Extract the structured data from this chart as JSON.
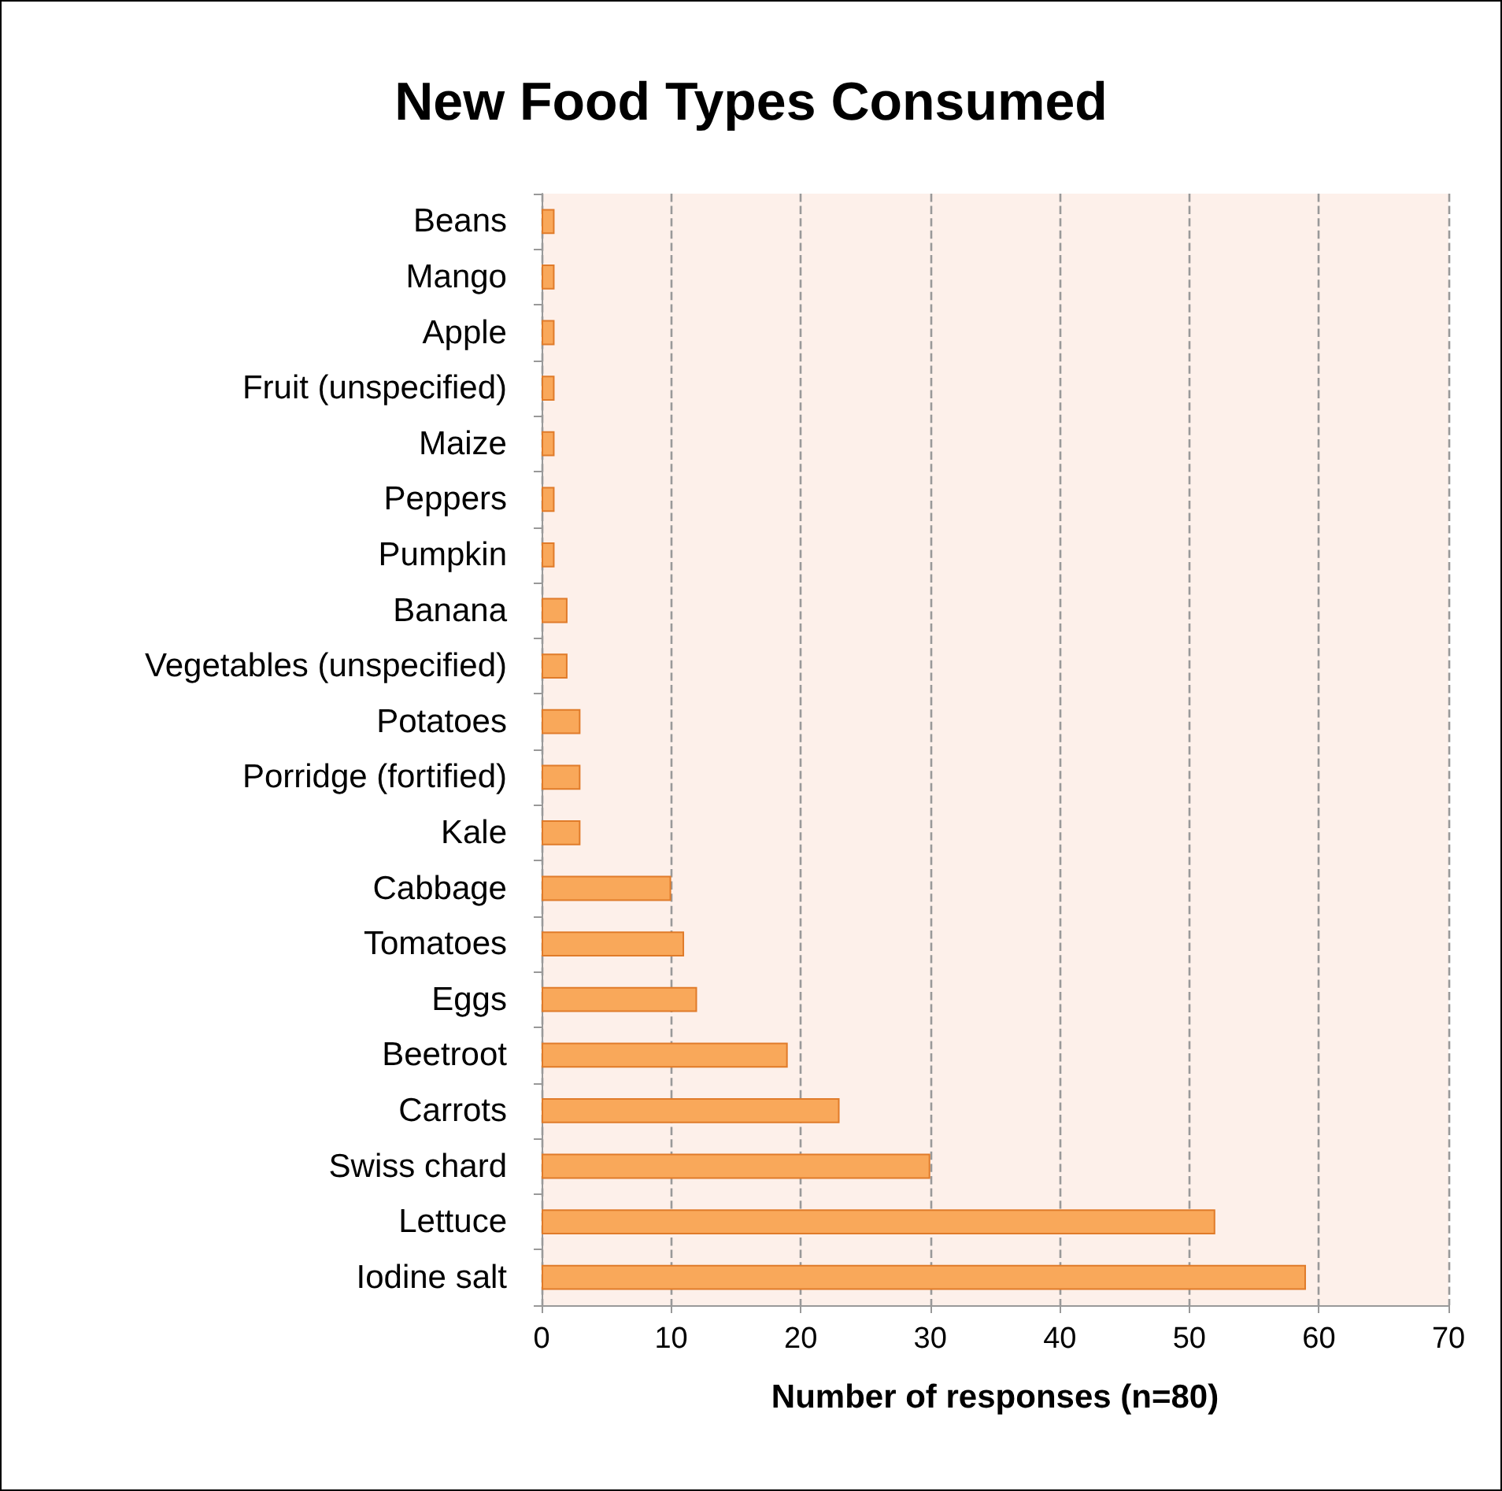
{
  "chart_data": {
    "type": "bar",
    "orientation": "horizontal",
    "title": "New Food Types Consumed",
    "xlabel": "Number of responses (n=80)",
    "categories": [
      "Beans",
      "Mango",
      "Apple",
      "Fruit (unspecified)",
      "Maize",
      "Peppers",
      "Pumpkin",
      "Banana",
      "Vegetables (unspecified)",
      "Potatoes",
      "Porridge (fortified)",
      "Kale",
      "Cabbage",
      "Tomatoes",
      "Eggs",
      "Beetroot",
      "Carrots",
      "Swiss chard",
      "Lettuce",
      "Iodine salt"
    ],
    "values": [
      1,
      1,
      1,
      1,
      1,
      1,
      1,
      2,
      2,
      3,
      3,
      3,
      10,
      11,
      12,
      19,
      23,
      30,
      52,
      59
    ],
    "color": "#f9a85a",
    "xlim": [
      0,
      70
    ],
    "xticks": [
      0,
      10,
      20,
      30,
      40,
      50,
      60,
      70
    ],
    "grid": "x"
  }
}
